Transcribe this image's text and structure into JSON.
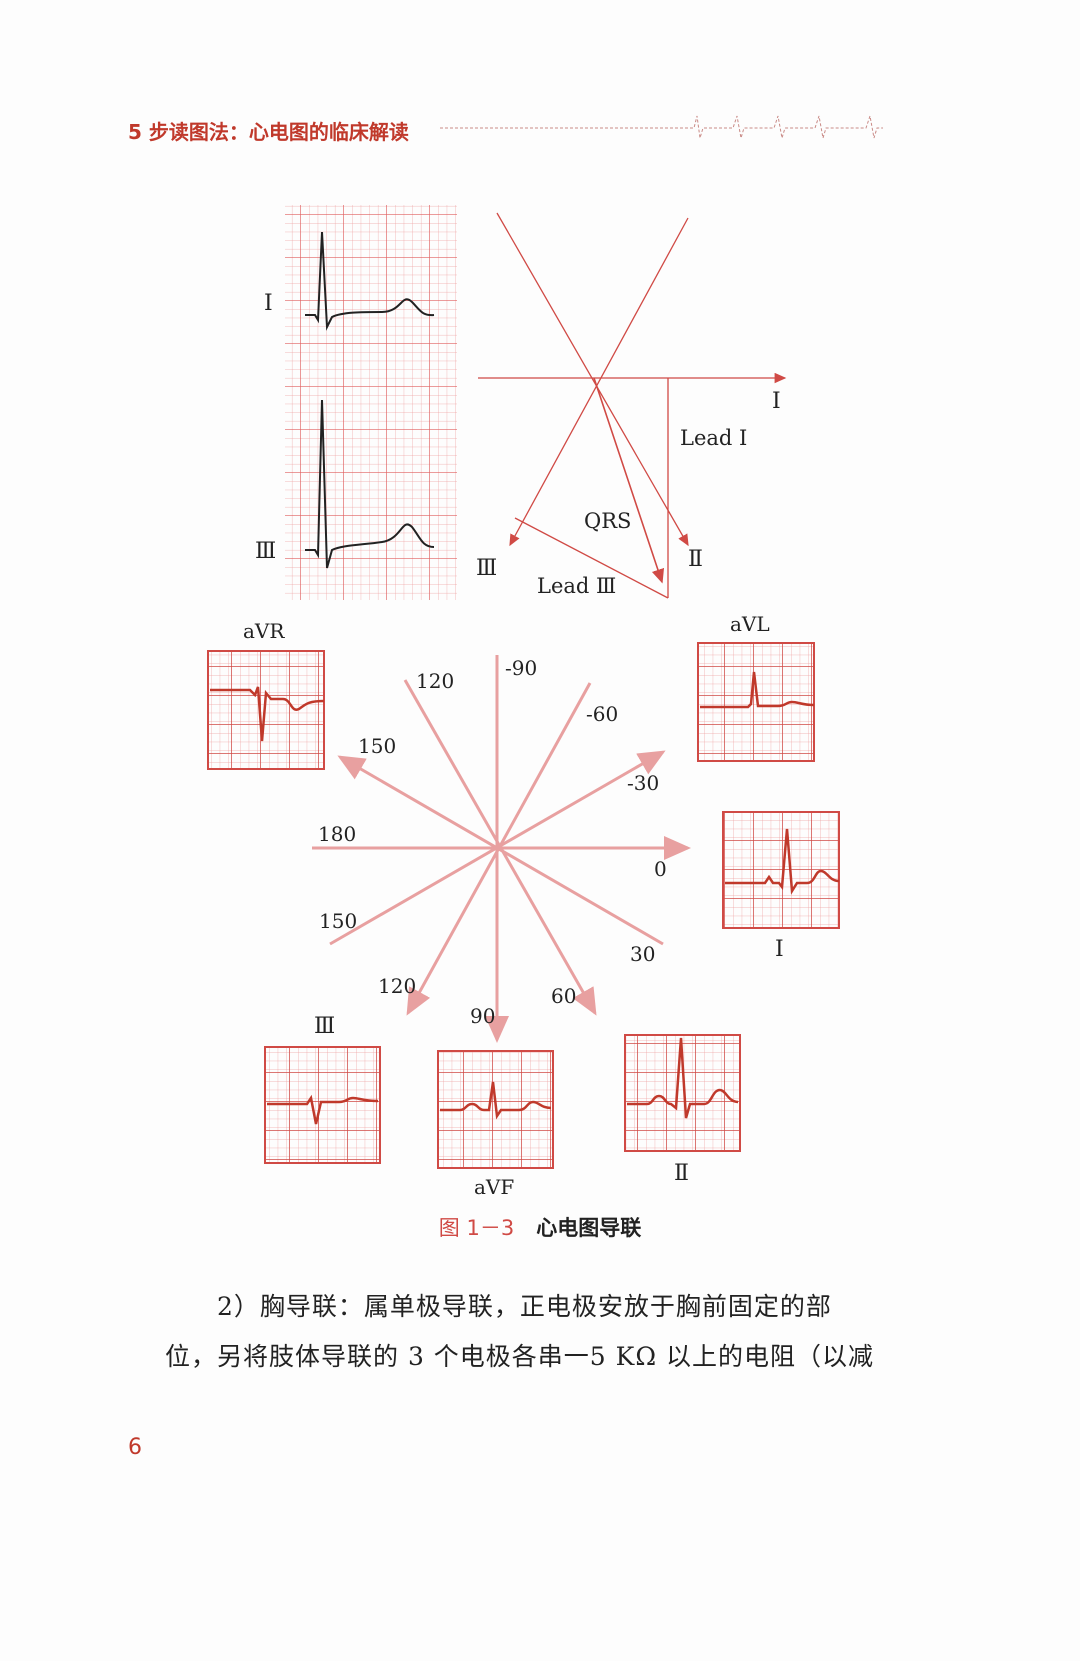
{
  "header": {
    "running_title": "5 步读图法：心电图的临床解读"
  },
  "figure": {
    "strip_labels": [
      "Ⅰ",
      "Ⅲ"
    ],
    "vector": {
      "axis_I": "Ⅰ",
      "axis_II": "Ⅱ",
      "axis_III": "Ⅲ",
      "lead_I": "Lead Ⅰ",
      "lead_III": "Lead Ⅲ",
      "qrs": "QRS"
    },
    "hexaxial": {
      "angles": [
        "120",
        "-90",
        "-60",
        "150",
        "-30",
        "180",
        "0",
        "150",
        "30",
        "120",
        "60",
        "90"
      ]
    },
    "leads": {
      "aVR": "aVR",
      "aVL": "aVL",
      "I": "Ⅰ",
      "III": "Ⅲ",
      "aVF": "aVF",
      "II": "Ⅱ"
    },
    "caption_number": "图 1－3",
    "caption_title": "心电图导联",
    "colors": {
      "accent": "#c0392b",
      "grid": "#e07070",
      "axis": "#e8a0a0"
    }
  },
  "body": {
    "lines": [
      "2）胸导联：属单极导联，正电极安放于胸前固定的部",
      "位，另将肢体导联的 3 个电极各串一5 KΩ 以上的电阻（以减"
    ]
  },
  "page_number": "6"
}
